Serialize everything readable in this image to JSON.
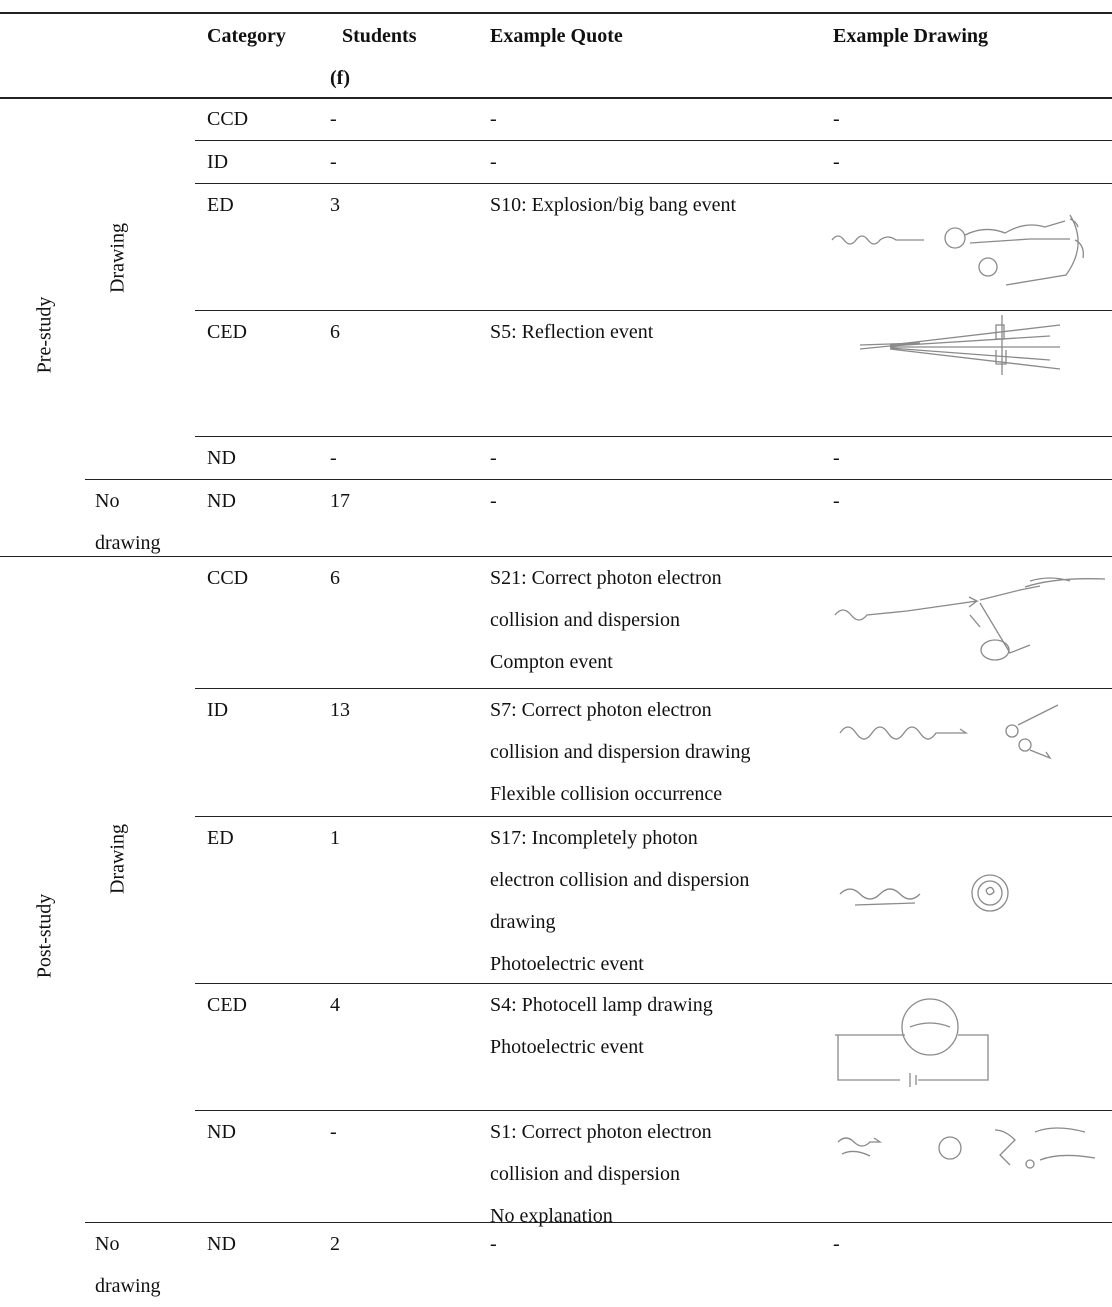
{
  "table": {
    "header": {
      "category": "Category",
      "students": [
        "Students",
        "(f)"
      ],
      "quote": "Example Quote",
      "drawing": "Example Drawing"
    },
    "groups": [
      {
        "phase": "Pre-study",
        "subgroups": [
          {
            "label": "Drawing",
            "rows": [
              {
                "category": "CCD",
                "students": "-",
                "quote": [
                  "-"
                ],
                "drawing": "-"
              },
              {
                "category": "ID",
                "students": "-",
                "quote": [
                  "-"
                ],
                "drawing": "-"
              },
              {
                "category": "ED",
                "students": 3,
                "quote": [
                  "S10: Explosion/big bang event"
                ]
              },
              {
                "category": "CED",
                "students": 6,
                "quote": [
                  "S5: Reflection event"
                ]
              },
              {
                "category": "ND",
                "students": "-",
                "quote": [
                  "-"
                ],
                "drawing": "-"
              }
            ]
          },
          {
            "label": "No drawing",
            "rows": [
              {
                "category": "ND",
                "students": 17,
                "quote": [
                  "-"
                ],
                "drawing": "-"
              }
            ]
          }
        ]
      },
      {
        "phase": "Post-study",
        "subgroups": [
          {
            "label": "Drawing",
            "rows": [
              {
                "category": "CCD",
                "students": 6,
                "quote": [
                  "S21: Correct photon electron",
                  "collision and dispersion",
                  "Compton event"
                ]
              },
              {
                "category": "ID",
                "students": 13,
                "quote": [
                  "S7: Correct photon electron",
                  "collision and dispersion drawing",
                  "Flexible collision occurrence"
                ]
              },
              {
                "category": "ED",
                "students": 1,
                "quote": [
                  "S17: Incompletely photon",
                  "electron collision and dispersion",
                  "drawing",
                  "Photoelectric event"
                ]
              },
              {
                "category": "CED",
                "students": 4,
                "quote": [
                  "S4: Photocell lamp drawing",
                  "Photoelectric event"
                ]
              },
              {
                "category": "ND",
                "students": "-",
                "quote": [
                  "S1: Correct photon electron",
                  "collision and dispersion",
                  "No explanation"
                ]
              }
            ]
          },
          {
            "label": "No drawing",
            "rows": [
              {
                "category": "ND",
                "students": 2,
                "quote": [
                  "-"
                ],
                "drawing": "-"
              }
            ]
          }
        ]
      }
    ]
  }
}
